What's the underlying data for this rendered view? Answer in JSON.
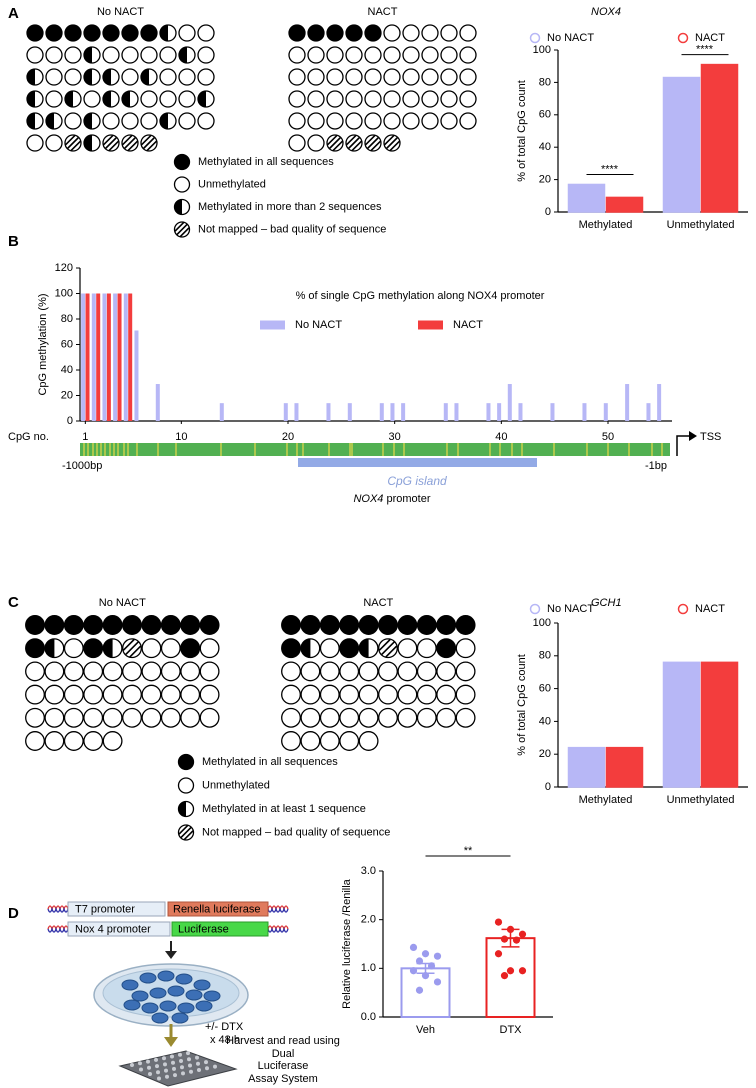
{
  "panel_labels": [
    "A",
    "B",
    "C",
    "D"
  ],
  "methylation_maps": [
    {
      "grids": [
        {
          "title": "No NACT",
          "rows": [
            [
              0,
              0,
              0,
              0,
              0,
              0,
              0,
              2,
              1,
              1
            ],
            [
              1,
              1,
              1,
              2,
              1,
              1,
              1,
              1,
              2,
              1
            ],
            [
              2,
              1,
              1,
              2,
              2,
              1,
              2,
              1,
              1,
              1
            ],
            [
              2,
              1,
              2,
              1,
              2,
              2,
              1,
              1,
              1,
              2
            ],
            [
              2,
              2,
              1,
              2,
              1,
              1,
              1,
              2,
              1,
              1
            ],
            [
              1,
              1,
              3,
              2,
              3,
              3,
              3
            ]
          ]
        },
        {
          "title": "NACT",
          "rows": [
            [
              0,
              0,
              0,
              0,
              0,
              1,
              1,
              1,
              1,
              1
            ],
            [
              1,
              1,
              1,
              1,
              1,
              1,
              1,
              1,
              1,
              1
            ],
            [
              1,
              1,
              1,
              1,
              1,
              1,
              1,
              1,
              1,
              1
            ],
            [
              1,
              1,
              1,
              1,
              1,
              1,
              1,
              1,
              1,
              1
            ],
            [
              1,
              1,
              1,
              1,
              1,
              1,
              1,
              1,
              1,
              1
            ],
            [
              1,
              1,
              3,
              3,
              3,
              3
            ]
          ]
        }
      ],
      "legend": [
        "Methylated in all sequences",
        "Unmethylated",
        "Methylated in more than 2 sequences",
        "Not mapped – bad quality of sequence"
      ]
    },
    {
      "grids": [
        {
          "title": "No NACT",
          "rows": [
            [
              0,
              0,
              0,
              0,
              0,
              0,
              0,
              0,
              0,
              0
            ],
            [
              0,
              2,
              1,
              0,
              2,
              3,
              1,
              1,
              0,
              1
            ],
            [
              1,
              1,
              1,
              1,
              1,
              1,
              1,
              1,
              1,
              1
            ],
            [
              1,
              1,
              1,
              1,
              1,
              1,
              1,
              1,
              1,
              1
            ],
            [
              1,
              1,
              1,
              1,
              1,
              1,
              1,
              1,
              1,
              1
            ],
            [
              1,
              1,
              1,
              1,
              1
            ]
          ]
        },
        {
          "title": "NACT",
          "rows": [
            [
              0,
              0,
              0,
              0,
              0,
              0,
              0,
              0,
              0,
              0
            ],
            [
              0,
              2,
              1,
              0,
              2,
              3,
              1,
              1,
              0,
              1
            ],
            [
              1,
              1,
              1,
              1,
              1,
              1,
              1,
              1,
              1,
              1
            ],
            [
              1,
              1,
              1,
              1,
              1,
              1,
              1,
              1,
              1,
              1
            ],
            [
              1,
              1,
              1,
              1,
              1,
              1,
              1,
              1,
              1,
              1
            ],
            [
              1,
              1,
              1,
              1,
              1
            ]
          ]
        }
      ],
      "legend": [
        "Methylated in all sequences",
        "Unmethylated",
        "Methylated in at least 1 sequence",
        "Not mapped – bad quality of sequence"
      ]
    }
  ],
  "promoter": {
    "start": "-1000bp",
    "end": "-1bp",
    "tss": "TSS",
    "island": "CpG island",
    "gene": "NOX4",
    "name": " promoter"
  },
  "assay": {
    "constructs": [
      [
        "T7 promoter",
        "Renella luciferase"
      ],
      [
        "Nox 4 promoter",
        "Luciferase"
      ]
    ],
    "treatment": [
      "+/- DTX",
      "x 48 h"
    ],
    "readout": [
      "Harvest and read using",
      "Dual",
      "Luciferase",
      "Assay System"
    ]
  },
  "chart_data": [
    {
      "type": "bar",
      "title": "NOX4",
      "ylabel": "% of total CpG count",
      "categories": [
        "Methylated",
        "Unmethylated"
      ],
      "series": [
        {
          "name": "No NACT",
          "color": "#b7b7f6",
          "values": [
            17,
            83
          ]
        },
        {
          "name": "NACT",
          "color": "#f33d3d",
          "values": [
            9,
            91
          ]
        }
      ],
      "ylim": [
        0,
        100
      ],
      "yticks": [
        0,
        20,
        40,
        60,
        80,
        100
      ],
      "significance": [
        "****",
        "****"
      ]
    },
    {
      "type": "bar",
      "title": "% of single CpG methylation along NOX4 promoter",
      "xlabel": "CpG no.",
      "ylabel": "CpG methylation (%)",
      "x": [
        1,
        2,
        3,
        4,
        5,
        6,
        7,
        8,
        9,
        10,
        11,
        12,
        13,
        14,
        15,
        16,
        17,
        18,
        19,
        20,
        21,
        22,
        23,
        24,
        25,
        26,
        27,
        28,
        29,
        30,
        31,
        32,
        33,
        34,
        35,
        36,
        37,
        38,
        39,
        40,
        41,
        42,
        43,
        44,
        45,
        46,
        47,
        48,
        49,
        50,
        51,
        52,
        53,
        54,
        55
      ],
      "series": [
        {
          "name": "No NACT",
          "color": "#b7b7f6",
          "values": [
            100,
            100,
            100,
            100,
            100,
            71,
            0,
            29,
            0,
            0,
            0,
            0,
            0,
            14,
            0,
            0,
            0,
            0,
            0,
            14,
            14,
            0,
            0,
            14,
            0,
            14,
            0,
            0,
            14,
            14,
            14,
            0,
            0,
            0,
            14,
            14,
            0,
            0,
            14,
            14,
            29,
            14,
            0,
            0,
            14,
            0,
            0,
            14,
            0,
            14,
            0,
            29,
            0,
            14,
            29
          ]
        },
        {
          "name": "NACT",
          "color": "#f33d3d",
          "values": [
            100,
            100,
            100,
            100,
            100,
            0,
            0,
            0,
            0,
            0,
            0,
            0,
            0,
            0,
            0,
            0,
            0,
            0,
            0,
            0,
            0,
            0,
            0,
            0,
            0,
            0,
            0,
            0,
            0,
            0,
            0,
            0,
            0,
            0,
            0,
            0,
            0,
            0,
            0,
            0,
            0,
            0,
            0,
            0,
            0,
            0,
            0,
            0,
            0,
            0,
            0,
            0,
            0,
            0,
            0
          ]
        }
      ],
      "xlim": [
        0.5,
        56
      ],
      "xticks": [
        1,
        10,
        20,
        30,
        40,
        50
      ],
      "ylim": [
        0,
        120
      ],
      "yticks": [
        0,
        20,
        40,
        60,
        80,
        100,
        120
      ]
    },
    {
      "type": "bar",
      "title": "GCH1",
      "ylabel": "% of total CpG count",
      "categories": [
        "Methylated",
        "Unmethylated"
      ],
      "series": [
        {
          "name": "No NACT",
          "color": "#b7b7f6",
          "values": [
            24,
            76
          ]
        },
        {
          "name": "NACT",
          "color": "#f33d3d",
          "values": [
            24,
            76
          ]
        }
      ],
      "ylim": [
        0,
        100
      ],
      "yticks": [
        0,
        20,
        40,
        60,
        80,
        100
      ]
    },
    {
      "type": "bar",
      "ylabel": "Relative luciferase /Renilla",
      "categories": [
        "Veh",
        "DTX"
      ],
      "values": [
        1.0,
        1.62
      ],
      "errors": [
        0.1,
        0.18
      ],
      "points": [
        [
          1.43,
          1.3,
          1.25,
          1.15,
          1.05,
          0.95,
          0.85,
          0.72,
          0.55
        ],
        [
          1.95,
          1.8,
          1.7,
          1.6,
          1.58,
          1.3,
          0.95,
          0.95,
          0.85
        ]
      ],
      "colors": [
        "#9b9bee",
        "#e82222"
      ],
      "ylim": [
        0,
        3
      ],
      "yticks": [
        {
          "value": 0,
          "label": "0.0"
        },
        {
          "value": 1,
          "label": "1.0"
        },
        {
          "value": 2,
          "label": "2.0"
        },
        {
          "value": 3,
          "label": "3.0"
        }
      ],
      "significance": "**"
    }
  ]
}
